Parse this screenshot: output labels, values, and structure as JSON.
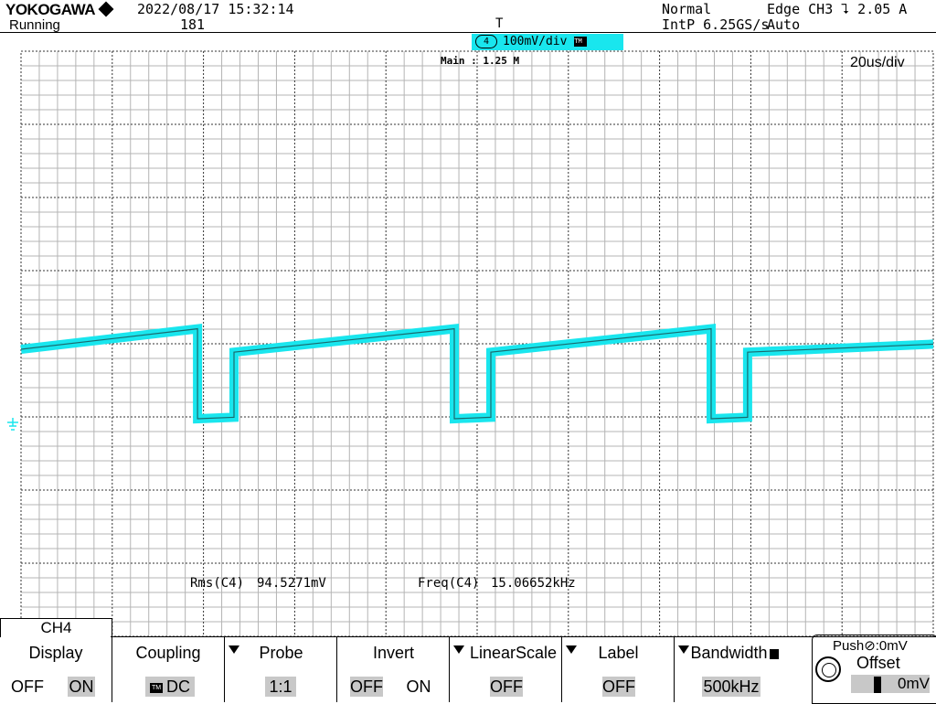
{
  "header": {
    "brand": "YOKOGAWA",
    "run_state": "Running",
    "datetime": "2022/08/17 15:32:14",
    "acq_count": "181",
    "acq_mode": "Normal",
    "sample_rate": "IntP 6.25GS/s",
    "trigger": "Edge CH3 ⮧ 2.05 A",
    "trigger_mode": "Auto"
  },
  "display": {
    "trigger_position_marker": "T",
    "channel_badge_number": "4",
    "channel_badge_scale": "100mV/div",
    "zoom_label": "Main : 1.25 M",
    "time_div": "20us/div",
    "trace_color": "#19e6ee"
  },
  "measurements": [
    {
      "label": "Rms(C4)",
      "value": "94.5271mV"
    },
    {
      "label": "Freq(C4)",
      "value": "15.06652kHz"
    }
  ],
  "menu": {
    "channel_tab": "CH4",
    "display": {
      "title": "Display",
      "off": "OFF",
      "on": "ON",
      "selected": "ON"
    },
    "coupling": {
      "title": "Coupling",
      "value": "DC",
      "tag": "TM"
    },
    "probe": {
      "title": "Probe",
      "value": "1:1"
    },
    "invert": {
      "title": "Invert",
      "off": "OFF",
      "on": "ON",
      "selected": "OFF"
    },
    "linear_scale": {
      "title": "LinearScale",
      "value": "OFF"
    },
    "label": {
      "title": "Label",
      "value": "OFF"
    },
    "bandwidth": {
      "title": "Bandwidth",
      "value": "500kHz"
    },
    "offset": {
      "push_label": "Push⊘:0mV",
      "title": "Offset",
      "value": "0mV"
    }
  },
  "chart_data": {
    "type": "line",
    "title": "",
    "xlabel": "",
    "ylabel": "",
    "time_div": "20us/div",
    "volts_div": "100mV/div",
    "frequency_hz": 15066.52,
    "rms_mv": 94.5271,
    "x_unit": "us",
    "x": [
      -100,
      -61.3,
      -61.3,
      -53.3,
      -53.3,
      -5.0,
      -5.0,
      3.0,
      3.0,
      51.3,
      51.3,
      59.3,
      59.3,
      100
    ],
    "y_unit": "mV",
    "y": [
      100,
      128,
      5,
      7,
      96,
      128,
      5,
      7,
      96,
      128,
      5,
      7,
      96,
      107
    ],
    "ground_level_mv": 0,
    "grid": true
  }
}
